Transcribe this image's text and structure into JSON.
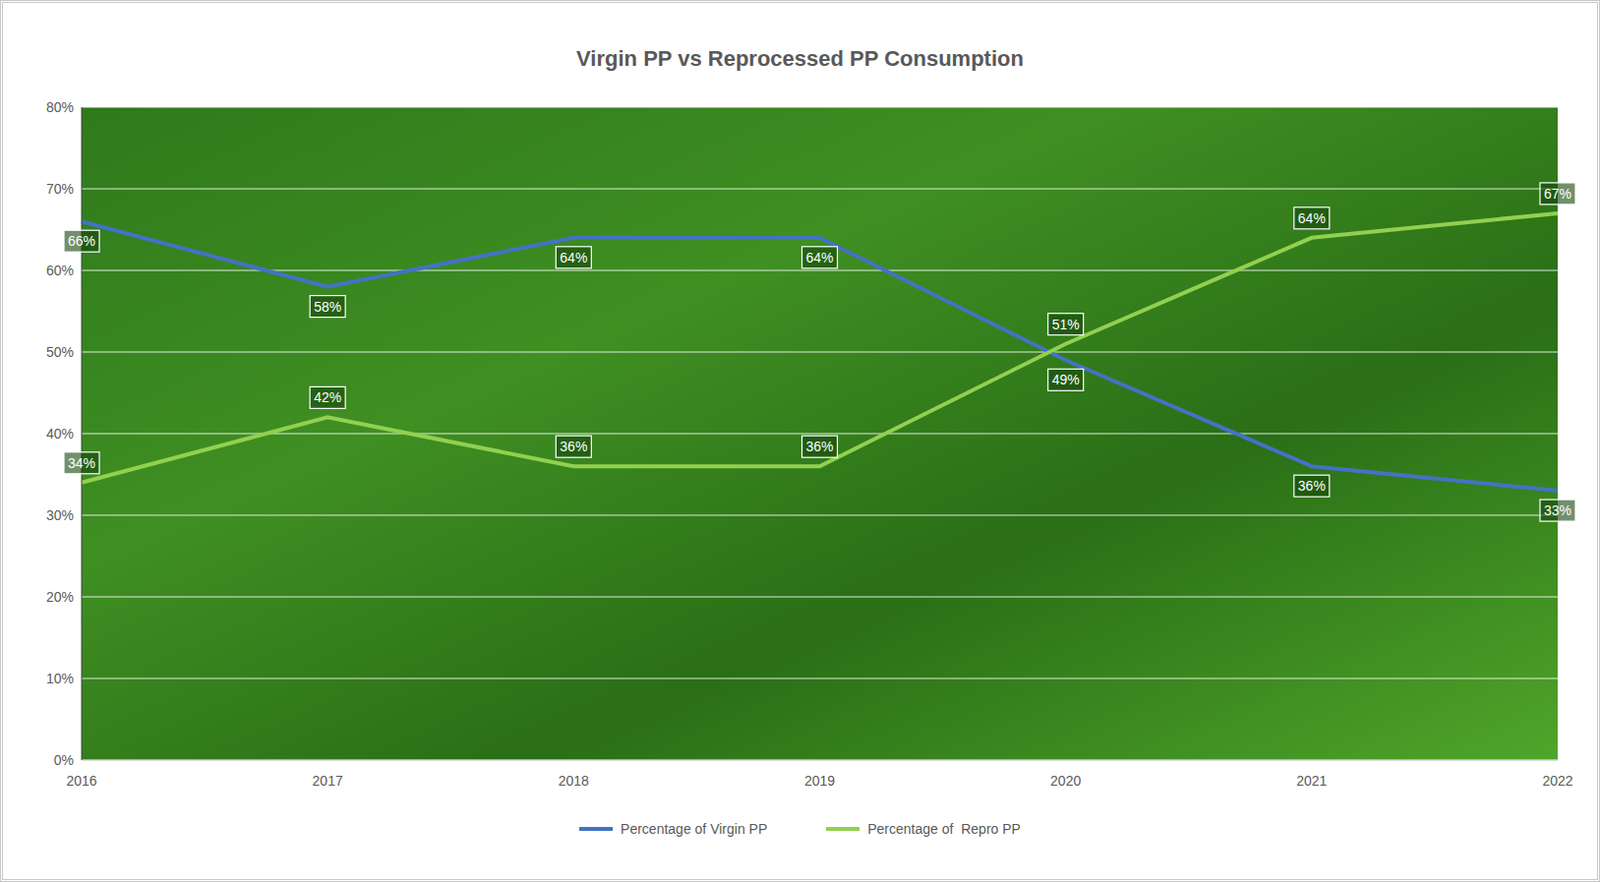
{
  "chart_data": {
    "type": "line",
    "title": "Virgin PP vs Reprocessed PP Consumption",
    "categories": [
      "2016",
      "2017",
      "2018",
      "2019",
      "2020",
      "2021",
      "2022"
    ],
    "series": [
      {
        "name": "Percentage of Virgin PP",
        "color": "#4472c4",
        "values": [
          66,
          58,
          64,
          64,
          49,
          36,
          33
        ],
        "value_labels": [
          "66%",
          "58%",
          "64%",
          "64%",
          "49%",
          "36%",
          "33%"
        ]
      },
      {
        "name": "Percentage of  Repro PP",
        "color": "#92d050",
        "values": [
          34,
          42,
          36,
          36,
          51,
          64,
          67
        ],
        "value_labels": [
          "34%",
          "42%",
          "36%",
          "36%",
          "51%",
          "64%",
          "67%"
        ]
      }
    ],
    "ylim": [
      0,
      80
    ],
    "yticks": [
      {
        "value": 0,
        "label": "0%"
      },
      {
        "value": 10,
        "label": "10%"
      },
      {
        "value": 20,
        "label": "20%"
      },
      {
        "value": 30,
        "label": "30%"
      },
      {
        "value": 40,
        "label": "40%"
      },
      {
        "value": 50,
        "label": "50%"
      },
      {
        "value": 60,
        "label": "60%"
      },
      {
        "value": 70,
        "label": "70%"
      },
      {
        "value": 80,
        "label": "80%"
      }
    ],
    "grid": true,
    "data_labels": true,
    "legend": "bottom"
  }
}
